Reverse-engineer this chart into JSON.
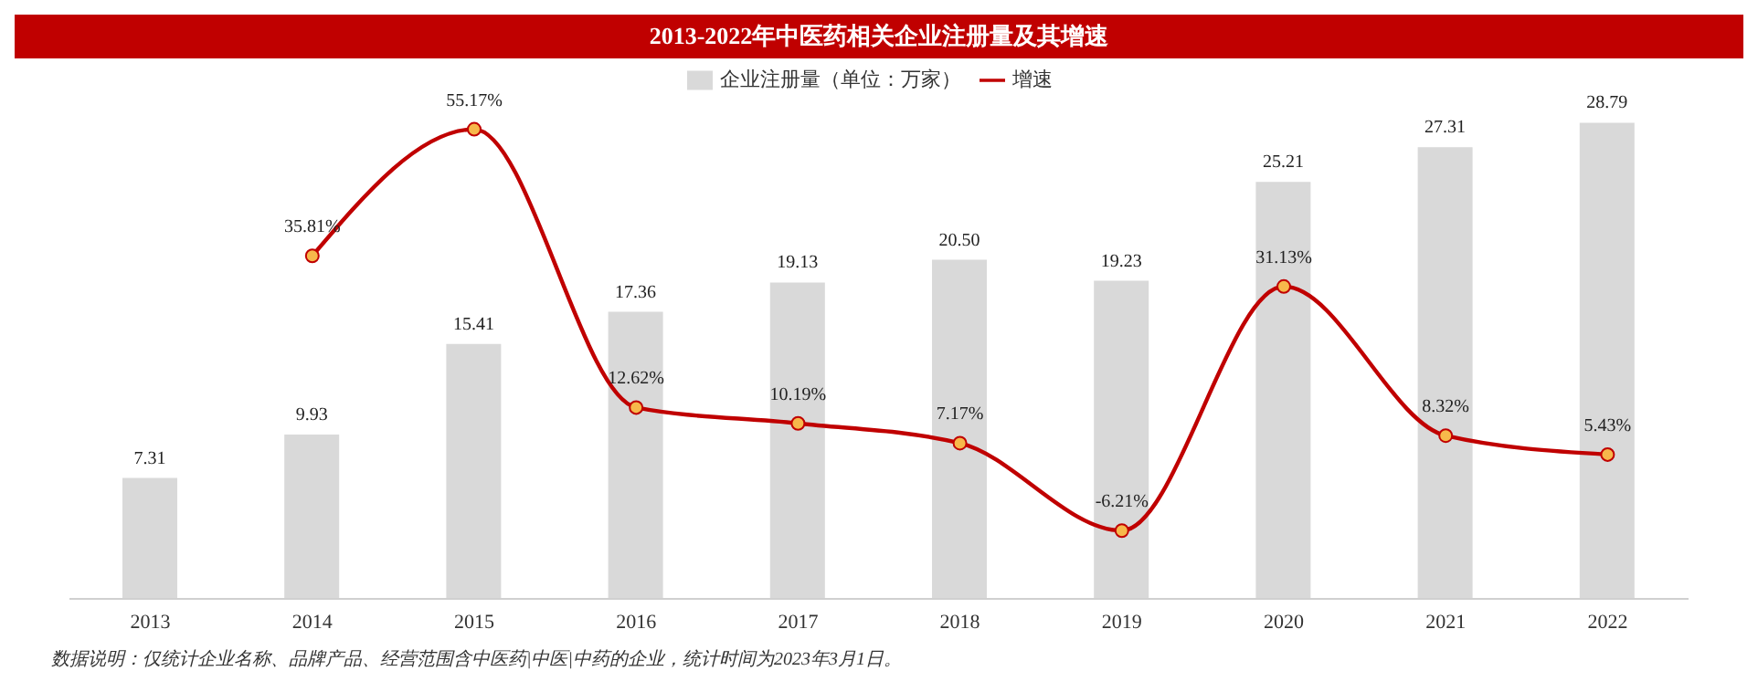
{
  "chart_data": {
    "type": "bar",
    "title": "2013-2022年中医药相关企业注册量及其增速",
    "categories": [
      "2013",
      "2014",
      "2015",
      "2016",
      "2017",
      "2018",
      "2019",
      "2020",
      "2021",
      "2022"
    ],
    "series": [
      {
        "name": "企业注册量（单位：万家）",
        "color": "#d9d9d9",
        "values": [
          7.31,
          9.93,
          15.41,
          17.36,
          19.13,
          20.5,
          19.23,
          25.21,
          27.31,
          28.79
        ],
        "value_labels": [
          "7.31",
          "9.93",
          "15.41",
          "17.36",
          "19.13",
          "20.50",
          "19.23",
          "25.21",
          "27.31",
          "28.79"
        ]
      },
      {
        "name": "增速",
        "type": "line",
        "axis": "y2",
        "color": "#c00000",
        "values": [
          null,
          35.81,
          55.17,
          12.62,
          10.19,
          7.17,
          -6.21,
          31.13,
          8.32,
          5.43
        ],
        "value_labels": [
          null,
          "35.81%",
          "55.17%",
          "12.62%",
          "10.19%",
          "7.17%",
          "-6.21%",
          "31.13%",
          "8.32%",
          "5.43%"
        ]
      }
    ],
    "marker": "circle",
    "legend": "top",
    "tick_labels": "x",
    "annotations": [
      "数据说明：仅统计企业名称、品牌产品、经营范围含中医药|中医|中药的企业，统计时间为2023年3月1日。"
    ]
  }
}
